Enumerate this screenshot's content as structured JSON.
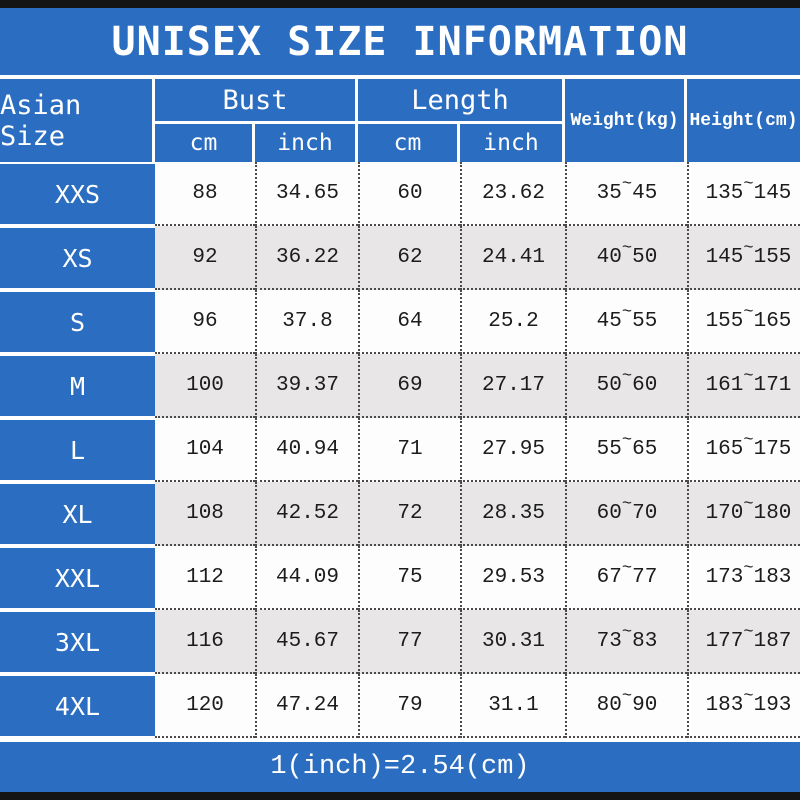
{
  "title": "UNISEX SIZE INFORMATION",
  "footer_note": "1(inch)=2.54(cm)",
  "misc": {
    "tilde": "~"
  },
  "header": {
    "size_col": "Asian Size",
    "bust_group": "Bust",
    "length_group": "Length",
    "weight_col": "Weight(kg)",
    "height_col": "Height(cm)",
    "sub_cm": "cm",
    "sub_inch": "inch"
  },
  "table": {
    "rows": [
      {
        "size": "XXS",
        "bust_cm": "88",
        "bust_inch": "34.65",
        "length_cm": "60",
        "length_inch": "23.62",
        "weight_lo": "35",
        "weight_hi": "45",
        "height_lo": "135",
        "height_hi": "145"
      },
      {
        "size": "XS",
        "bust_cm": "92",
        "bust_inch": "36.22",
        "length_cm": "62",
        "length_inch": "24.41",
        "weight_lo": "40",
        "weight_hi": "50",
        "height_lo": "145",
        "height_hi": "155"
      },
      {
        "size": "S",
        "bust_cm": "96",
        "bust_inch": "37.8",
        "length_cm": "64",
        "length_inch": "25.2",
        "weight_lo": "45",
        "weight_hi": "55",
        "height_lo": "155",
        "height_hi": "165"
      },
      {
        "size": "M",
        "bust_cm": "100",
        "bust_inch": "39.37",
        "length_cm": "69",
        "length_inch": "27.17",
        "weight_lo": "50",
        "weight_hi": "60",
        "height_lo": "161",
        "height_hi": "171"
      },
      {
        "size": "L",
        "bust_cm": "104",
        "bust_inch": "40.94",
        "length_cm": "71",
        "length_inch": "27.95",
        "weight_lo": "55",
        "weight_hi": "65",
        "height_lo": "165",
        "height_hi": "175"
      },
      {
        "size": "XL",
        "bust_cm": "108",
        "bust_inch": "42.52",
        "length_cm": "72",
        "length_inch": "28.35",
        "weight_lo": "60",
        "weight_hi": "70",
        "height_lo": "170",
        "height_hi": "180"
      },
      {
        "size": "XXL",
        "bust_cm": "112",
        "bust_inch": "44.09",
        "length_cm": "75",
        "length_inch": "29.53",
        "weight_lo": "67",
        "weight_hi": "77",
        "height_lo": "173",
        "height_hi": "183"
      },
      {
        "size": "3XL",
        "bust_cm": "116",
        "bust_inch": "45.67",
        "length_cm": "77",
        "length_inch": "30.31",
        "weight_lo": "73",
        "weight_hi": "83",
        "height_lo": "177",
        "height_hi": "187"
      },
      {
        "size": "4XL",
        "bust_cm": "120",
        "bust_inch": "47.24",
        "length_cm": "79",
        "length_inch": "31.1",
        "weight_lo": "80",
        "weight_hi": "90",
        "height_lo": "183",
        "height_hi": "193"
      }
    ]
  },
  "colors": {
    "blue": "#2b6dc0",
    "row_alt": "#e8e6e7",
    "row_base": "#fdfdfd",
    "dotted_line": "#4a4a4a",
    "black_bar": "#141414",
    "text_dark": "#1c1c1c",
    "text_light": "#ffffff"
  },
  "chart_data": {
    "type": "table",
    "title": "UNISEX SIZE INFORMATION",
    "footnote": "1(inch)=2.54(cm)",
    "columns": [
      "Asian Size",
      "Bust cm",
      "Bust inch",
      "Length cm",
      "Length inch",
      "Weight(kg)",
      "Height(cm)"
    ],
    "rows": [
      [
        "XXS",
        88,
        34.65,
        60,
        23.62,
        "35~45",
        "135~145"
      ],
      [
        "XS",
        92,
        36.22,
        62,
        24.41,
        "40~50",
        "145~155"
      ],
      [
        "S",
        96,
        37.8,
        64,
        25.2,
        "45~55",
        "155~165"
      ],
      [
        "M",
        100,
        39.37,
        69,
        27.17,
        "50~60",
        "161~171"
      ],
      [
        "L",
        104,
        40.94,
        71,
        27.95,
        "55~65",
        "165~175"
      ],
      [
        "XL",
        108,
        42.52,
        72,
        28.35,
        "60~70",
        "170~180"
      ],
      [
        "XXL",
        112,
        44.09,
        75,
        29.53,
        "67~77",
        "173~183"
      ],
      [
        "3XL",
        116,
        45.67,
        77,
        30.31,
        "73~83",
        "177~187"
      ],
      [
        "4XL",
        120,
        47.24,
        79,
        31.1,
        "80~90",
        "183~193"
      ]
    ]
  }
}
